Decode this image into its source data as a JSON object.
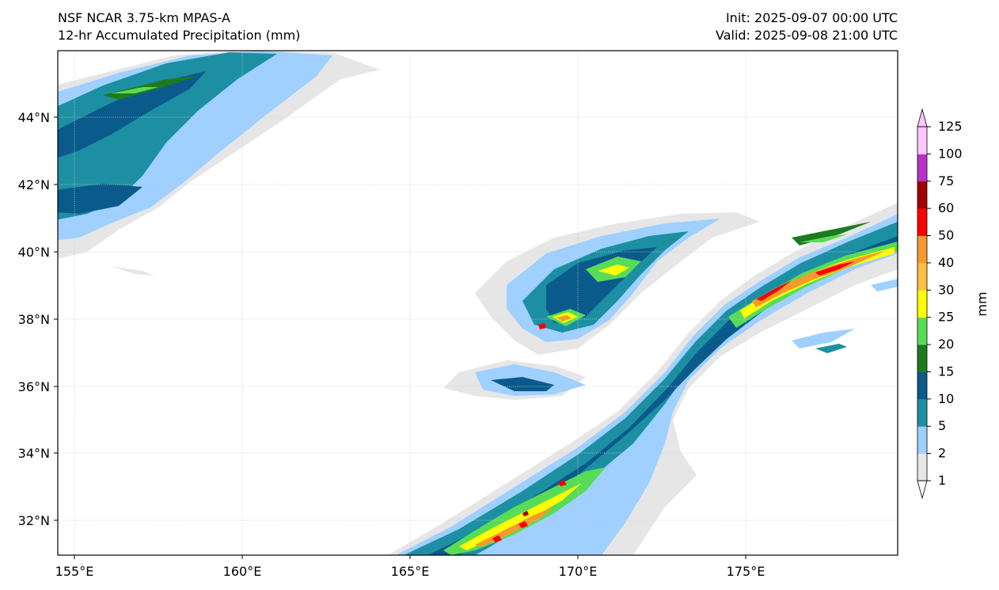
{
  "header": {
    "model": "NSF NCAR 3.75-km MPAS-A",
    "field": "12-hr Accumulated Precipitation (mm)",
    "init": "Init: 2025-09-07 00:00 UTC",
    "valid": "Valid: 2025-09-08 21:00 UTC"
  },
  "map": {
    "lon_ticks": [
      "155°E",
      "160°E",
      "165°E",
      "170°E",
      "175°E"
    ],
    "lat_ticks": [
      "44°N",
      "42°N",
      "40°N",
      "38°N",
      "36°N",
      "34°N",
      "32°N"
    ],
    "gridlines": true
  },
  "colorbar": {
    "label": "mm",
    "levels": [
      "1",
      "2",
      "5",
      "10",
      "15",
      "20",
      "25",
      "30",
      "40",
      "50",
      "60",
      "75",
      "100",
      "125"
    ],
    "colors": [
      "#e6e6e6",
      "#9fd0ff",
      "#1d8fa3",
      "#0b5a8c",
      "#1f7a1f",
      "#58dc58",
      "#ffff00",
      "#ffbf3f",
      "#f59a2e",
      "#ff0000",
      "#a00000",
      "#b833c4",
      "#ffc8ff"
    ]
  },
  "palette": {
    "trace": "#e6e6e6",
    "light": "#9fd0ff",
    "teal": "#1d8fa3",
    "navy": "#0b5a8c",
    "darkgreen": "#1f7a1f",
    "green": "#58dc58",
    "yellow": "#ffff00",
    "orange": "#f59a2e",
    "red": "#ff0000",
    "darkred": "#a00000"
  }
}
